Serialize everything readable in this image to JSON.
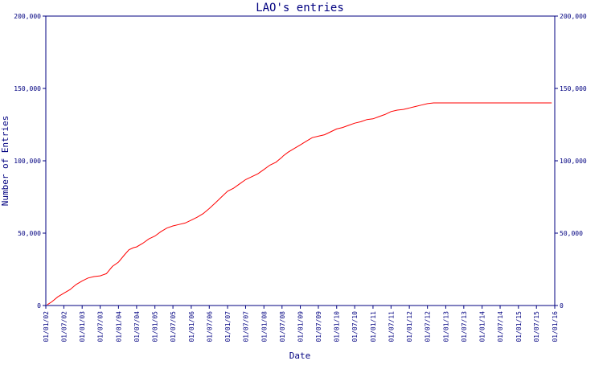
{
  "chart_data": {
    "type": "line",
    "title": "LAO's entries",
    "xlabel": "Date",
    "ylabel": "Number of Entries",
    "grid": false,
    "legend": "none",
    "x_range": [
      "2002-01-01",
      "2016-01-01"
    ],
    "ylim": [
      0,
      200000
    ],
    "y_ticks": [
      "0",
      "50,000",
      "100,000",
      "150,000",
      "200,000"
    ],
    "y_tick_values": [
      0,
      50000,
      100000,
      150000,
      200000
    ],
    "x_ticks": [
      "01/01/02",
      "01/07/02",
      "01/01/03",
      "01/07/03",
      "01/01/04",
      "01/07/04",
      "01/01/05",
      "01/07/05",
      "01/01/06",
      "01/07/06",
      "01/01/07",
      "01/07/07",
      "01/01/08",
      "01/07/08",
      "01/01/09",
      "01/07/09",
      "01/01/10",
      "01/07/10",
      "01/01/11",
      "01/07/11",
      "01/01/12",
      "01/07/12",
      "01/01/13",
      "01/07/13",
      "01/01/14",
      "01/07/14",
      "01/01/15",
      "01/07/15",
      "01/01/16"
    ],
    "x_tick_values": [
      "2002-01-01",
      "2002-07-01",
      "2003-01-01",
      "2003-07-01",
      "2004-01-01",
      "2004-07-01",
      "2005-01-01",
      "2005-07-01",
      "2006-01-01",
      "2006-07-01",
      "2007-01-01",
      "2007-07-01",
      "2008-01-01",
      "2008-07-01",
      "2009-01-01",
      "2009-07-01",
      "2010-01-01",
      "2010-07-01",
      "2011-01-01",
      "2011-07-01",
      "2012-01-01",
      "2012-07-01",
      "2013-01-01",
      "2013-07-01",
      "2014-01-01",
      "2014-07-01",
      "2015-01-01",
      "2015-07-01",
      "2016-01-01"
    ],
    "colors": {
      "axis": "#000080",
      "text": "#000080",
      "line": "#ff0000",
      "background": "#ffffff"
    },
    "series": [
      {
        "x": [
          "2002-01-15",
          "2002-03-01",
          "2002-05-01",
          "2002-07-01",
          "2002-09-01",
          "2002-11-01",
          "2003-01-01",
          "2003-03-01",
          "2003-05-01",
          "2003-07-01",
          "2003-09-01",
          "2003-11-01",
          "2004-01-01",
          "2004-03-01",
          "2004-04-15",
          "2004-06-01",
          "2004-07-01",
          "2004-09-01",
          "2004-11-01",
          "2005-01-01",
          "2005-03-01",
          "2005-05-01",
          "2005-07-01",
          "2005-09-01",
          "2005-11-01",
          "2006-01-01",
          "2006-03-01",
          "2006-05-01",
          "2006-07-01",
          "2006-09-01",
          "2006-11-01",
          "2007-01-01",
          "2007-03-01",
          "2007-05-01",
          "2007-07-01",
          "2007-09-01",
          "2007-11-01",
          "2008-01-01",
          "2008-03-01",
          "2008-05-01",
          "2008-07-01",
          "2008-07-15",
          "2008-09-01",
          "2008-11-01",
          "2009-01-01",
          "2009-03-01",
          "2009-05-01",
          "2009-07-01",
          "2009-09-01",
          "2009-11-01",
          "2010-01-01",
          "2010-03-01",
          "2010-05-01",
          "2010-07-01",
          "2010-09-01",
          "2010-11-01",
          "2011-01-01",
          "2011-03-01",
          "2011-05-01",
          "2011-07-01",
          "2011-09-01",
          "2011-11-01",
          "2012-01-01",
          "2012-03-01",
          "2012-05-01",
          "2012-07-01",
          "2012-09-01",
          "2012-11-01",
          "2013-01-01",
          "2013-03-01",
          "2013-06-01",
          "2014-01-01",
          "2015-01-01",
          "2015-12-01"
        ],
        "y": [
          500,
          2500,
          6000,
          8500,
          11000,
          14500,
          17000,
          19000,
          20000,
          20500,
          22000,
          27000,
          30000,
          35000,
          38500,
          40000,
          40500,
          43000,
          46000,
          48000,
          51000,
          53500,
          55000,
          56000,
          57000,
          59000,
          61000,
          63500,
          67000,
          71000,
          75000,
          79000,
          81000,
          84000,
          87000,
          89000,
          91000,
          94000,
          97000,
          99000,
          102500,
          103500,
          106000,
          108500,
          111000,
          113500,
          116000,
          117000,
          118000,
          120000,
          122000,
          123000,
          124500,
          126000,
          127000,
          128500,
          129000,
          130500,
          132000,
          134000,
          135000,
          135500,
          136500,
          137500,
          138500,
          139500,
          140000,
          140000,
          140000,
          140000,
          140000,
          140000,
          140000,
          140000
        ]
      }
    ]
  }
}
